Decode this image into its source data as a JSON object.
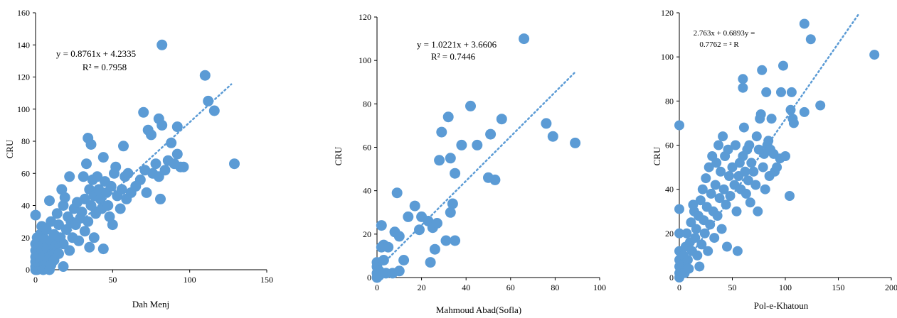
{
  "colors": {
    "point": "#5b9bd5",
    "trend": "#5b9bd5",
    "axis": "#000000"
  },
  "chart_data": [
    {
      "type": "scatter",
      "title": "",
      "xlabel": "Dah Menj",
      "ylabel": "CRU",
      "xlim": [
        0,
        150
      ],
      "ylim": [
        0,
        160
      ],
      "xticks": [
        "0",
        "50",
        "100",
        "150"
      ],
      "yticks": [
        "0",
        "20",
        "40",
        "60",
        "80",
        "100",
        "120",
        "140",
        "160"
      ],
      "equation": "y = 0.8761x + 4.2335",
      "r2": "R² = 0.7958",
      "trendline": {
        "slope": 0.8761,
        "intercept": 4.2335,
        "x_range": [
          0,
          127
        ]
      },
      "points": [
        [
          0,
          0
        ],
        [
          0,
          2
        ],
        [
          0,
          5
        ],
        [
          0,
          8
        ],
        [
          0,
          12
        ],
        [
          0,
          16
        ],
        [
          0,
          34
        ],
        [
          1,
          0
        ],
        [
          1,
          10
        ],
        [
          1,
          20
        ],
        [
          2,
          1
        ],
        [
          2,
          4
        ],
        [
          2,
          14
        ],
        [
          3,
          6
        ],
        [
          3,
          22
        ],
        [
          4,
          2
        ],
        [
          4,
          12
        ],
        [
          4,
          27
        ],
        [
          5,
          0
        ],
        [
          5,
          8
        ],
        [
          5,
          16
        ],
        [
          6,
          3
        ],
        [
          6,
          19
        ],
        [
          7,
          1
        ],
        [
          7,
          10
        ],
        [
          7,
          25
        ],
        [
          8,
          5
        ],
        [
          8,
          14
        ],
        [
          9,
          0
        ],
        [
          9,
          8
        ],
        [
          9,
          43
        ],
        [
          10,
          3
        ],
        [
          10,
          18
        ],
        [
          10,
          30
        ],
        [
          11,
          12
        ],
        [
          12,
          6
        ],
        [
          12,
          22
        ],
        [
          13,
          15
        ],
        [
          14,
          35
        ],
        [
          15,
          10
        ],
        [
          15,
          28
        ],
        [
          16,
          20
        ],
        [
          17,
          50
        ],
        [
          18,
          2
        ],
        [
          18,
          16
        ],
        [
          18,
          40
        ],
        [
          19,
          45
        ],
        [
          20,
          25
        ],
        [
          21,
          33
        ],
        [
          22,
          12
        ],
        [
          22,
          58
        ],
        [
          23,
          30
        ],
        [
          24,
          20
        ],
        [
          25,
          38
        ],
        [
          26,
          28
        ],
        [
          27,
          42
        ],
        [
          28,
          18
        ],
        [
          29,
          32
        ],
        [
          30,
          36
        ],
        [
          31,
          58
        ],
        [
          32,
          24
        ],
        [
          32,
          44
        ],
        [
          33,
          66
        ],
        [
          34,
          82
        ],
        [
          34,
          30
        ],
        [
          35,
          14
        ],
        [
          35,
          50
        ],
        [
          36,
          78
        ],
        [
          36,
          40
        ],
        [
          37,
          56
        ],
        [
          38,
          46
        ],
        [
          38,
          20
        ],
        [
          39,
          35
        ],
        [
          40,
          58
        ],
        [
          41,
          50
        ],
        [
          42,
          44
        ],
        [
          43,
          38
        ],
        [
          44,
          13
        ],
        [
          44,
          70
        ],
        [
          45,
          55
        ],
        [
          46,
          48
        ],
        [
          47,
          40
        ],
        [
          48,
          33
        ],
        [
          49,
          52
        ],
        [
          50,
          28
        ],
        [
          51,
          60
        ],
        [
          52,
          64
        ],
        [
          53,
          46
        ],
        [
          55,
          38
        ],
        [
          56,
          50
        ],
        [
          57,
          77
        ],
        [
          58,
          58
        ],
        [
          59,
          44
        ],
        [
          60,
          60
        ],
        [
          62,
          48
        ],
        [
          65,
          52
        ],
        [
          68,
          56
        ],
        [
          70,
          98
        ],
        [
          71,
          62
        ],
        [
          72,
          48
        ],
        [
          73,
          87
        ],
        [
          75,
          84
        ],
        [
          76,
          60
        ],
        [
          78,
          66
        ],
        [
          80,
          94
        ],
        [
          80,
          58
        ],
        [
          81,
          44
        ],
        [
          82,
          140
        ],
        [
          82,
          90
        ],
        [
          84,
          62
        ],
        [
          86,
          68
        ],
        [
          88,
          79
        ],
        [
          90,
          66
        ],
        [
          92,
          89
        ],
        [
          92,
          72
        ],
        [
          94,
          64
        ],
        [
          96,
          64
        ],
        [
          110,
          121
        ],
        [
          112,
          105
        ],
        [
          116,
          99
        ],
        [
          129,
          66
        ]
      ]
    },
    {
      "type": "scatter",
      "title": "",
      "xlabel": "Mahmoud Abad(Sofla)",
      "ylabel": "CRU",
      "xlim": [
        0,
        100
      ],
      "ylim": [
        0,
        120
      ],
      "xticks": [
        "0",
        "20",
        "40",
        "60",
        "80",
        "100"
      ],
      "yticks": [
        "0",
        "20",
        "40",
        "60",
        "80",
        "100",
        "120"
      ],
      "equation": "y = 1.0221x + 3.6606",
      "r2": "R² = 0.7446",
      "trendline": {
        "slope": 1.0221,
        "intercept": 3.6606,
        "x_range": [
          0,
          89
        ]
      },
      "points": [
        [
          0,
          0
        ],
        [
          0,
          2
        ],
        [
          0,
          5
        ],
        [
          0,
          7
        ],
        [
          1,
          3
        ],
        [
          1,
          1
        ],
        [
          2,
          24
        ],
        [
          2,
          14
        ],
        [
          3,
          15
        ],
        [
          3,
          8
        ],
        [
          4,
          2
        ],
        [
          5,
          14
        ],
        [
          7,
          2
        ],
        [
          8,
          21
        ],
        [
          9,
          39
        ],
        [
          10,
          19
        ],
        [
          10,
          3
        ],
        [
          12,
          8
        ],
        [
          14,
          28
        ],
        [
          17,
          33
        ],
        [
          19,
          22
        ],
        [
          20,
          28
        ],
        [
          23,
          26
        ],
        [
          24,
          7
        ],
        [
          25,
          23
        ],
        [
          26,
          13
        ],
        [
          27,
          25
        ],
        [
          28,
          54
        ],
        [
          29,
          67
        ],
        [
          31,
          17
        ],
        [
          32,
          74
        ],
        [
          33,
          55
        ],
        [
          33,
          30
        ],
        [
          34,
          34
        ],
        [
          35,
          48
        ],
        [
          35,
          17
        ],
        [
          38,
          61
        ],
        [
          42,
          79
        ],
        [
          45,
          61
        ],
        [
          50,
          46
        ],
        [
          51,
          66
        ],
        [
          53,
          45
        ],
        [
          56,
          73
        ],
        [
          66,
          110
        ],
        [
          76,
          71
        ],
        [
          79,
          65
        ],
        [
          89,
          62
        ]
      ]
    },
    {
      "type": "scatter",
      "title": "",
      "xlabel": "Pol-e-Khatoun",
      "ylabel": "CRU",
      "xlim": [
        0,
        200
      ],
      "ylim": [
        0,
        120
      ],
      "xticks": [
        "0",
        "50",
        "100",
        "150",
        "200"
      ],
      "yticks": [
        "0",
        "20",
        "40",
        "60",
        "80",
        "100",
        "120"
      ],
      "equation_line1": "2.763x + 0.6893y =",
      "equation_line2": "0.7762 = ² R",
      "trendline": {
        "slope": 0.6893,
        "intercept": 2.763,
        "x_range": [
          0,
          170
        ]
      },
      "points": [
        [
          0,
          0
        ],
        [
          0,
          2
        ],
        [
          0,
          5
        ],
        [
          0,
          8
        ],
        [
          0,
          12
        ],
        [
          0,
          20
        ],
        [
          0,
          31
        ],
        [
          0,
          69
        ],
        [
          2,
          3
        ],
        [
          3,
          6
        ],
        [
          4,
          10
        ],
        [
          5,
          2
        ],
        [
          6,
          14
        ],
        [
          7,
          20
        ],
        [
          8,
          8
        ],
        [
          9,
          4
        ],
        [
          10,
          16
        ],
        [
          11,
          25
        ],
        [
          12,
          12
        ],
        [
          13,
          33
        ],
        [
          14,
          30
        ],
        [
          15,
          18
        ],
        [
          16,
          22
        ],
        [
          17,
          10
        ],
        [
          18,
          28
        ],
        [
          19,
          5
        ],
        [
          20,
          35
        ],
        [
          21,
          15
        ],
        [
          22,
          40
        ],
        [
          23,
          26
        ],
        [
          24,
          20
        ],
        [
          25,
          45
        ],
        [
          26,
          32
        ],
        [
          27,
          12
        ],
        [
          28,
          50
        ],
        [
          29,
          24
        ],
        [
          30,
          38
        ],
        [
          31,
          55
        ],
        [
          32,
          30
        ],
        [
          33,
          18
        ],
        [
          34,
          42
        ],
        [
          35,
          52
        ],
        [
          36,
          28
        ],
        [
          37,
          60
        ],
        [
          38,
          36
        ],
        [
          39,
          48
        ],
        [
          40,
          22
        ],
        [
          41,
          64
        ],
        [
          42,
          40
        ],
        [
          43,
          55
        ],
        [
          44,
          33
        ],
        [
          45,
          14
        ],
        [
          46,
          58
        ],
        [
          47,
          46
        ],
        [
          48,
          37
        ],
        [
          50,
          50
        ],
        [
          52,
          42
        ],
        [
          53,
          60
        ],
        [
          54,
          30
        ],
        [
          55,
          12
        ],
        [
          56,
          46
        ],
        [
          57,
          52
        ],
        [
          58,
          40
        ],
        [
          60,
          55
        ],
        [
          60,
          86
        ],
        [
          60,
          90
        ],
        [
          61,
          68
        ],
        [
          62,
          48
        ],
        [
          63,
          38
        ],
        [
          64,
          58
        ],
        [
          65,
          44
        ],
        [
          66,
          60
        ],
        [
          67,
          34
        ],
        [
          68,
          52
        ],
        [
          70,
          48
        ],
        [
          72,
          42
        ],
        [
          73,
          64
        ],
        [
          74,
          30
        ],
        [
          75,
          58
        ],
        [
          76,
          72
        ],
        [
          77,
          74
        ],
        [
          78,
          94
        ],
        [
          79,
          50
        ],
        [
          80,
          56
        ],
        [
          81,
          40
        ],
        [
          82,
          84
        ],
        [
          83,
          60
        ],
        [
          84,
          62
        ],
        [
          85,
          46
        ],
        [
          86,
          58
        ],
        [
          87,
          72
        ],
        [
          89,
          56
        ],
        [
          90,
          48
        ],
        [
          92,
          50
        ],
        [
          95,
          54
        ],
        [
          96,
          84
        ],
        [
          98,
          96
        ],
        [
          100,
          55
        ],
        [
          104,
          37
        ],
        [
          105,
          76
        ],
        [
          106,
          84
        ],
        [
          107,
          72
        ],
        [
          108,
          70
        ],
        [
          118,
          75
        ],
        [
          118,
          115
        ],
        [
          124,
          108
        ],
        [
          133,
          78
        ],
        [
          184,
          101
        ]
      ]
    }
  ]
}
